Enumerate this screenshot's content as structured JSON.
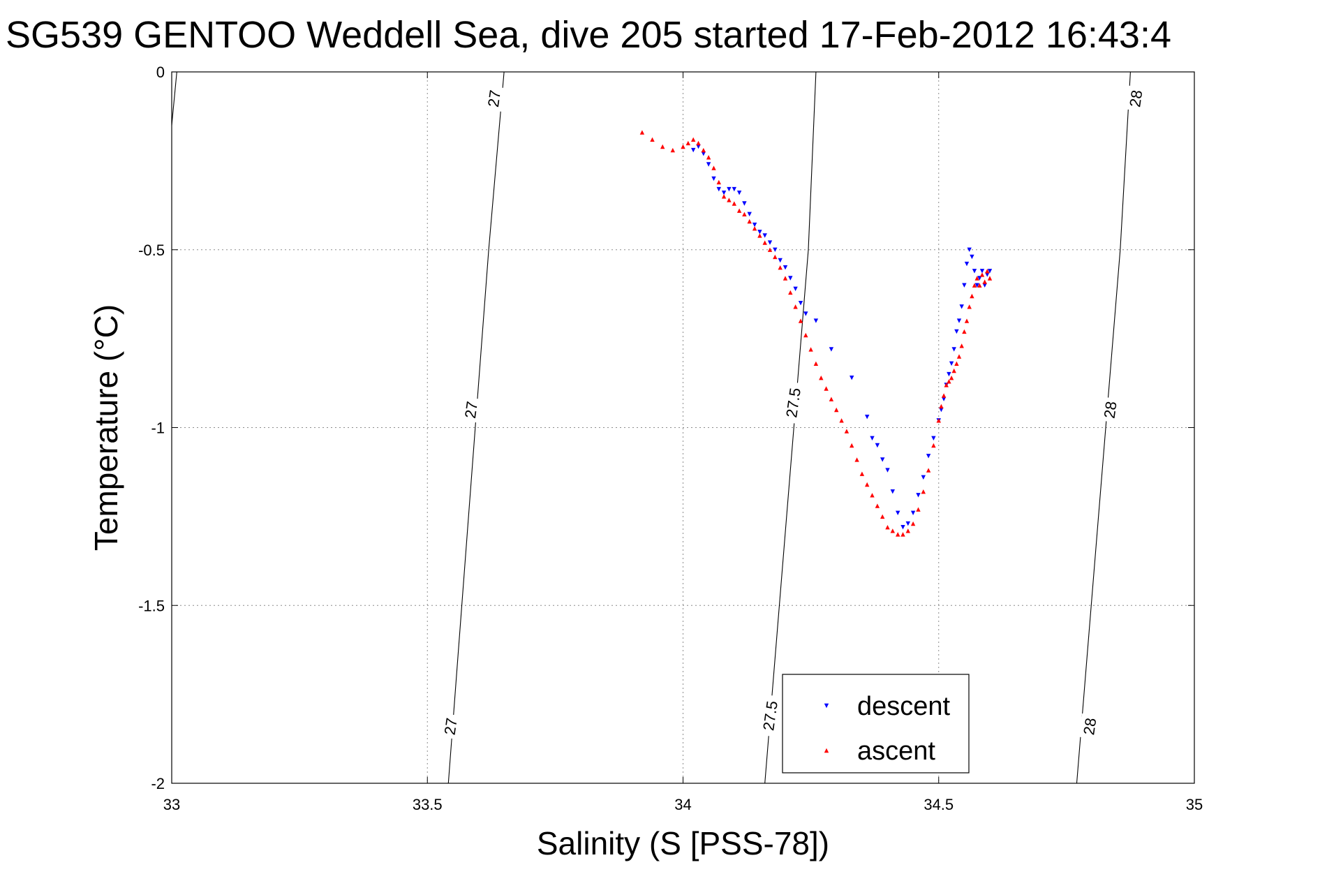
{
  "chart_data": {
    "type": "scatter",
    "title": "SG539 GENTOO Weddell Sea, dive 205 started 17-Feb-2012 16:43:4",
    "xlabel": "Salinity (S [PSS-78])",
    "ylabel": "Temperature (°C)",
    "xlim": [
      33,
      35
    ],
    "ylim": [
      -2,
      0
    ],
    "x_ticks": [
      33,
      33.5,
      34,
      34.5,
      35
    ],
    "x_tick_labels": [
      "33",
      "33.5",
      "34",
      "34.5",
      "35"
    ],
    "y_ticks": [
      0,
      -0.5,
      -1,
      -1.5,
      -2
    ],
    "y_tick_labels": [
      "0",
      "-0.5",
      "-1",
      "-1.5",
      "-2"
    ],
    "grid": true,
    "legend_position": "bottom-center",
    "density_contours": [
      {
        "value": "27",
        "points": [
          [
            33.541,
            -2.0
          ],
          [
            33.62,
            -0.5
          ],
          [
            33.65,
            0.0
          ]
        ]
      },
      {
        "value": "27.5",
        "points": [
          [
            34.16,
            -2.0
          ],
          [
            34.245,
            -0.5
          ],
          [
            34.26,
            0.0
          ]
        ]
      },
      {
        "value": "28",
        "points": [
          [
            34.77,
            -2.0
          ],
          [
            34.855,
            -0.5
          ],
          [
            34.875,
            0.0
          ]
        ]
      },
      {
        "value": "",
        "points": [
          [
            33.0,
            -0.15
          ],
          [
            33.01,
            0.0
          ]
        ]
      }
    ],
    "contour_labels": [
      {
        "text": "27",
        "x": 33.63,
        "y": -0.075
      },
      {
        "text": "27",
        "x": 33.585,
        "y": -0.95
      },
      {
        "text": "27",
        "x": 33.545,
        "y": -1.84
      },
      {
        "text": "27.5",
        "x": 34.215,
        "y": -0.93
      },
      {
        "text": "27.5",
        "x": 34.17,
        "y": -1.81
      },
      {
        "text": "28",
        "x": 34.885,
        "y": -0.075
      },
      {
        "text": "28",
        "x": 34.835,
        "y": -0.95
      },
      {
        "text": "28",
        "x": 34.795,
        "y": -1.84
      }
    ],
    "series": [
      {
        "name": "descent",
        "color": "#0000ff",
        "marker": "triangle-down",
        "x": [
          34.02,
          34.03,
          34.04,
          34.05,
          34.06,
          34.07,
          34.08,
          34.09,
          34.1,
          34.11,
          34.12,
          34.13,
          34.14,
          34.15,
          34.16,
          34.17,
          34.18,
          34.19,
          34.2,
          34.21,
          34.22,
          34.23,
          34.24,
          34.26,
          34.29,
          34.33,
          34.36,
          34.37,
          34.38,
          34.39,
          34.4,
          34.41,
          34.42,
          34.43,
          34.44,
          34.45,
          34.46,
          34.47,
          34.48,
          34.49,
          34.5,
          34.505,
          34.51,
          34.515,
          34.52,
          34.525,
          34.53,
          34.535,
          34.54,
          34.545,
          34.55,
          34.555,
          34.56,
          34.565,
          34.57,
          34.575,
          34.58,
          34.585,
          34.59,
          34.595,
          34.6
        ],
        "y": [
          -0.22,
          -0.21,
          -0.23,
          -0.26,
          -0.3,
          -0.33,
          -0.34,
          -0.33,
          -0.33,
          -0.34,
          -0.37,
          -0.4,
          -0.43,
          -0.45,
          -0.46,
          -0.48,
          -0.5,
          -0.53,
          -0.55,
          -0.58,
          -0.61,
          -0.65,
          -0.68,
          -0.7,
          -0.78,
          -0.86,
          -0.97,
          -1.03,
          -1.05,
          -1.09,
          -1.12,
          -1.18,
          -1.24,
          -1.28,
          -1.27,
          -1.24,
          -1.19,
          -1.14,
          -1.08,
          -1.03,
          -0.98,
          -0.95,
          -0.92,
          -0.88,
          -0.85,
          -0.82,
          -0.78,
          -0.73,
          -0.7,
          -0.66,
          -0.6,
          -0.54,
          -0.5,
          -0.52,
          -0.56,
          -0.6,
          -0.58,
          -0.56,
          -0.6,
          -0.57,
          -0.56
        ]
      },
      {
        "name": "ascent",
        "color": "#ff0000",
        "marker": "triangle-up",
        "x": [
          33.92,
          33.94,
          33.96,
          33.98,
          34.0,
          34.01,
          34.02,
          34.03,
          34.04,
          34.05,
          34.06,
          34.07,
          34.08,
          34.09,
          34.1,
          34.11,
          34.12,
          34.13,
          34.14,
          34.15,
          34.16,
          34.17,
          34.18,
          34.19,
          34.2,
          34.21,
          34.22,
          34.23,
          34.24,
          34.25,
          34.26,
          34.27,
          34.28,
          34.29,
          34.3,
          34.31,
          34.32,
          34.33,
          34.34,
          34.35,
          34.36,
          34.37,
          34.38,
          34.39,
          34.4,
          34.41,
          34.42,
          34.43,
          34.44,
          34.45,
          34.46,
          34.47,
          34.48,
          34.49,
          34.5,
          34.505,
          34.51,
          34.515,
          34.52,
          34.525,
          34.53,
          34.535,
          34.54,
          34.545,
          34.55,
          34.555,
          34.56,
          34.565,
          34.57,
          34.575,
          34.58,
          34.585,
          34.59,
          34.595,
          34.6
        ],
        "y": [
          -0.17,
          -0.19,
          -0.21,
          -0.22,
          -0.21,
          -0.2,
          -0.19,
          -0.2,
          -0.22,
          -0.24,
          -0.27,
          -0.31,
          -0.35,
          -0.36,
          -0.37,
          -0.39,
          -0.4,
          -0.42,
          -0.44,
          -0.46,
          -0.48,
          -0.5,
          -0.52,
          -0.55,
          -0.58,
          -0.62,
          -0.66,
          -0.7,
          -0.74,
          -0.78,
          -0.82,
          -0.86,
          -0.89,
          -0.92,
          -0.95,
          -0.98,
          -1.01,
          -1.05,
          -1.09,
          -1.13,
          -1.16,
          -1.19,
          -1.22,
          -1.25,
          -1.28,
          -1.29,
          -1.3,
          -1.3,
          -1.29,
          -1.27,
          -1.23,
          -1.18,
          -1.12,
          -1.05,
          -0.98,
          -0.94,
          -0.91,
          -0.88,
          -0.87,
          -0.86,
          -0.84,
          -0.82,
          -0.8,
          -0.77,
          -0.73,
          -0.7,
          -0.66,
          -0.63,
          -0.6,
          -0.58,
          -0.6,
          -0.57,
          -0.59,
          -0.56,
          -0.58
        ]
      }
    ]
  }
}
